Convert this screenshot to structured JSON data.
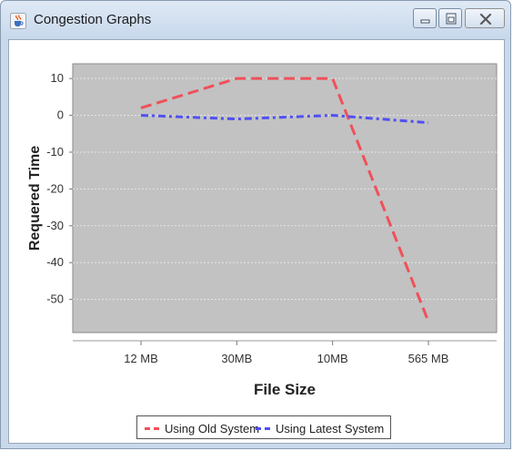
{
  "window": {
    "title": "Congestion  Graphs"
  },
  "icons": {
    "app": "java-cup-icon",
    "minimize": "minimize-icon",
    "maximize": "maximize-icon",
    "close": "close-icon"
  },
  "colors": {
    "old_system": "#f0505a",
    "latest_system": "#5050f0",
    "plot_background": "#c2c2c2"
  },
  "chart_data": {
    "type": "line",
    "categories": [
      "12 MB",
      "30MB",
      "10MB",
      "565 MB"
    ],
    "series": [
      {
        "name": "Using Old System",
        "values": [
          2,
          10,
          10,
          -56
        ]
      },
      {
        "name": "Using Latest System",
        "values": [
          0,
          -1,
          0,
          -2
        ]
      }
    ],
    "xlabel": "File Size",
    "ylabel": "Requered Time",
    "yticks": [
      "10",
      "0",
      "-10",
      "-20",
      "-30",
      "-40",
      "-50"
    ],
    "ylim": [
      -59,
      14
    ],
    "grid": true,
    "line_style": "dashed",
    "legend_position": "bottom"
  }
}
